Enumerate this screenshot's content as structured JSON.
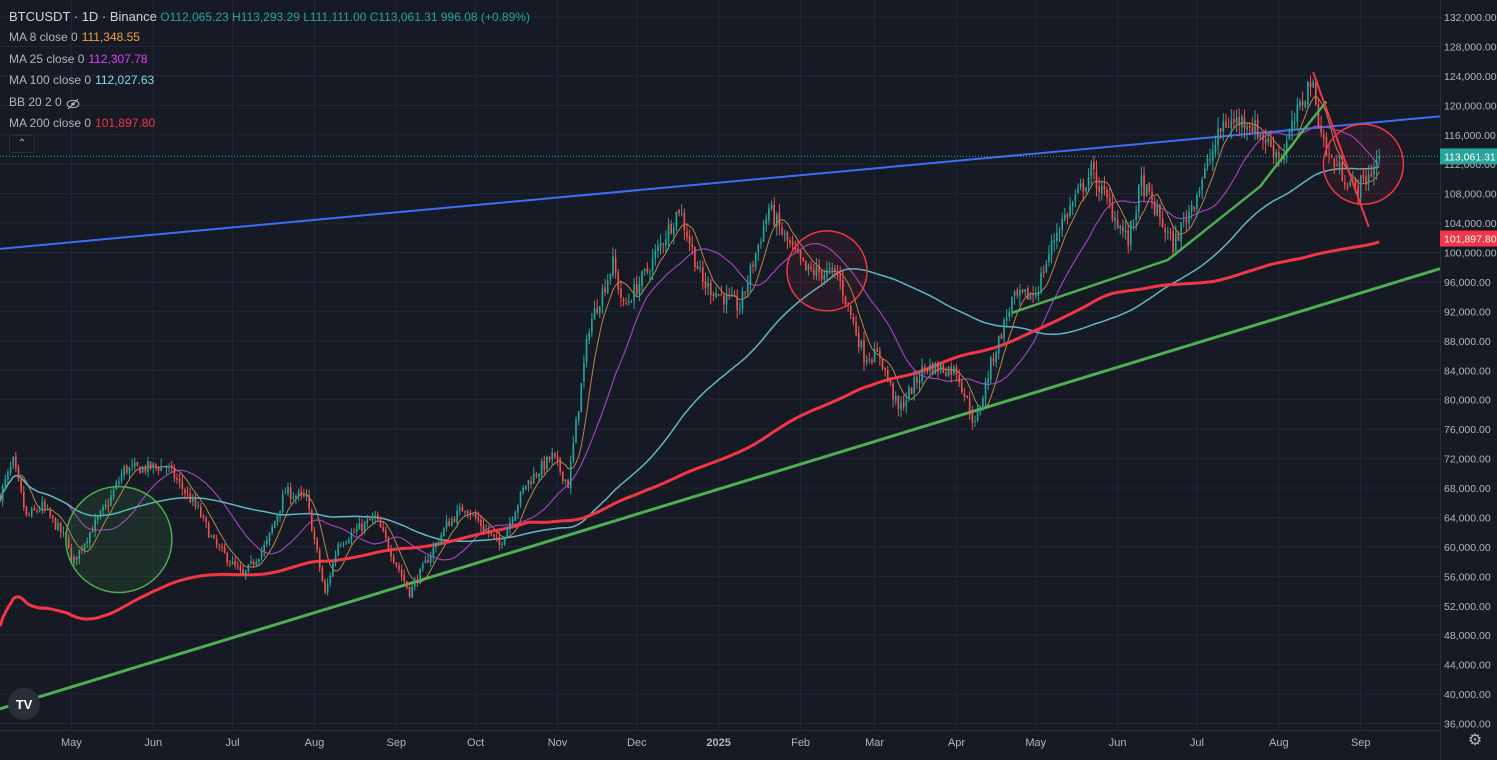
{
  "header": {
    "symbol": "BTCUSDT · 1D · Binance",
    "ohlc": "O112,065.23 H113,293.29 L111,111.00 C113,061.31 996.08 (+0.89%)",
    "indicators": [
      {
        "label": "MA 8 close 0",
        "value": "111,348.55",
        "color": "#f5a142"
      },
      {
        "label": "MA 25 close 0",
        "value": "112,307.78",
        "color": "#e040fb"
      },
      {
        "label": "MA 100 close 0",
        "value": "112,027.63",
        "color": "#80deea"
      },
      {
        "label": "BB 20 2 0",
        "value": "",
        "color": "#787b86"
      },
      {
        "label": "MA 200 close 0",
        "value": "101,897.80",
        "color": "#f23645"
      }
    ]
  },
  "price_tags": [
    {
      "text": "113,061.31",
      "value": 113061.31,
      "bg": "#26a69a"
    },
    {
      "text": "101,897.80",
      "value": 101897.8,
      "bg": "#f23645"
    }
  ],
  "chart_data": {
    "type": "candlestick",
    "symbol": "BTCUSDT",
    "interval": "1D",
    "exchange": "Binance",
    "y_ticks": [
      36000,
      40000,
      44000,
      48000,
      52000,
      56000,
      60000,
      64000,
      68000,
      72000,
      76000,
      80000,
      84000,
      88000,
      92000,
      96000,
      100000,
      104000,
      108000,
      112000,
      116000,
      120000,
      124000,
      128000,
      132000
    ],
    "y_tick_labels": [
      "36,000.00",
      "40,000.00",
      "44,000.00",
      "48,000.00",
      "52,000.00",
      "56,000.00",
      "60,000.00",
      "64,000.00",
      "68,000.00",
      "72,000.00",
      "76,000.00",
      "80,000.00",
      "84,000.00",
      "88,000.00",
      "92,000.00",
      "96,000.00",
      "100,000.00",
      "104,000.00",
      "108,000.00",
      "112,000.00",
      "116,000.00",
      "120,000.00",
      "124,000.00",
      "128,000.00",
      "132,000.00"
    ],
    "x_labels": [
      {
        "label": "May",
        "date": "2024-05-01"
      },
      {
        "label": "Jun",
        "date": "2024-06-01"
      },
      {
        "label": "Jul",
        "date": "2024-07-01"
      },
      {
        "label": "Aug",
        "date": "2024-08-01"
      },
      {
        "label": "Sep",
        "date": "2024-09-01"
      },
      {
        "label": "Oct",
        "date": "2024-10-01"
      },
      {
        "label": "Nov",
        "date": "2024-11-01"
      },
      {
        "label": "Dec",
        "date": "2024-12-01"
      },
      {
        "label": "2025",
        "date": "2025-01-01"
      },
      {
        "label": "Feb",
        "date": "2025-02-01"
      },
      {
        "label": "Mar",
        "date": "2025-03-01"
      },
      {
        "label": "Apr",
        "date": "2025-04-01"
      },
      {
        "label": "May",
        "date": "2025-05-01"
      },
      {
        "label": "Jun",
        "date": "2025-06-01"
      },
      {
        "label": "Jul",
        "date": "2025-07-01"
      },
      {
        "label": "Aug",
        "date": "2025-08-01"
      },
      {
        "label": "Sep",
        "date": "2025-09-01"
      }
    ],
    "date_range": [
      "2024-04-04",
      "2025-10-01"
    ],
    "price_path": [
      [
        "2024-04-04",
        67000
      ],
      [
        "2024-04-09",
        71500
      ],
      [
        "2024-04-14",
        64000
      ],
      [
        "2024-04-20",
        65500
      ],
      [
        "2024-04-30",
        60500
      ],
      [
        "2024-05-01",
        57500
      ],
      [
        "2024-05-08",
        62000
      ],
      [
        "2024-05-15",
        66000
      ],
      [
        "2024-05-21",
        70500
      ],
      [
        "2024-06-06",
        71000
      ],
      [
        "2024-06-18",
        65000
      ],
      [
        "2024-06-24",
        60500
      ],
      [
        "2024-07-05",
        56000
      ],
      [
        "2024-07-14",
        60500
      ],
      [
        "2024-07-21",
        67500
      ],
      [
        "2024-07-29",
        66500
      ],
      [
        "2024-08-05",
        53500
      ],
      [
        "2024-08-10",
        60500
      ],
      [
        "2024-08-24",
        64000
      ],
      [
        "2024-09-06",
        53800
      ],
      [
        "2024-09-20",
        63000
      ],
      [
        "2024-09-27",
        65500
      ],
      [
        "2024-10-10",
        60200
      ],
      [
        "2024-10-20",
        68500
      ],
      [
        "2024-10-30",
        72300
      ],
      [
        "2024-11-05",
        68500
      ],
      [
        "2024-11-13",
        90000
      ],
      [
        "2024-11-22",
        98500
      ],
      [
        "2024-11-26",
        92500
      ],
      [
        "2024-12-05",
        97500
      ],
      [
        "2024-12-17",
        106000
      ],
      [
        "2024-12-26",
        95800
      ],
      [
        "2025-01-09",
        92500
      ],
      [
        "2025-01-20",
        106000
      ],
      [
        "2025-01-26",
        102000
      ],
      [
        "2025-02-03",
        97500
      ],
      [
        "2025-02-15",
        97000
      ],
      [
        "2025-02-25",
        86000
      ],
      [
        "2025-03-03",
        86000
      ],
      [
        "2025-03-10",
        78500
      ],
      [
        "2025-03-20",
        84500
      ],
      [
        "2025-04-01",
        84000
      ],
      [
        "2025-04-08",
        76500
      ],
      [
        "2025-04-14",
        84800
      ],
      [
        "2025-04-22",
        93500
      ],
      [
        "2025-05-01",
        94500
      ],
      [
        "2025-05-09",
        103000
      ],
      [
        "2025-05-22",
        111000
      ],
      [
        "2025-06-05",
        101500
      ],
      [
        "2025-06-10",
        109500
      ],
      [
        "2025-06-22",
        101000
      ],
      [
        "2025-06-30",
        107200
      ],
      [
        "2025-07-11",
        117500
      ],
      [
        "2025-07-20",
        118000
      ],
      [
        "2025-08-02",
        113000
      ],
      [
        "2025-08-13",
        123500
      ],
      [
        "2025-08-19",
        113500
      ],
      [
        "2025-08-30",
        108500
      ],
      [
        "2025-09-04",
        110500
      ],
      [
        "2025-09-08",
        113061
      ]
    ],
    "moving_averages": [
      {
        "name": "MA 8 close 0",
        "color": "#f5a142",
        "last": 111348.55
      },
      {
        "name": "MA 25 close 0",
        "color": "#e040fb",
        "last": 112307.78
      },
      {
        "name": "MA 100 close 0",
        "color": "#80deea",
        "last": 112027.63
      },
      {
        "name": "MA 200 close 0",
        "color": "#f23645",
        "last": 101897.8
      }
    ],
    "colors": {
      "up": "#26a69a",
      "down": "#ef5350",
      "blue_line": "#3d6ef5",
      "green_line": "#4caf50",
      "red_ma": "#f23645",
      "cyan_ma": "#5fb8c2",
      "purple_ma": "#9c45b5",
      "grid": "#232734",
      "axis_text": "#b2b5be",
      "background": "#161a25"
    },
    "drawings": {
      "blue_trendline": [
        [
          "2024-04-04",
          100500
        ],
        [
          "2025-10-01",
          118500
        ]
      ],
      "green_trendline": [
        [
          "2024-04-04",
          38000
        ],
        [
          "2025-10-01",
          97800
        ]
      ],
      "green_circle_center": [
        "2024-05-19",
        61000
      ],
      "red_circle_1_center": [
        "2025-02-11",
        97500
      ],
      "red_circle_2_center": [
        "2025-09-02",
        112000
      ],
      "red_downtrend": [
        [
          "2025-08-14",
          124500
        ],
        [
          "2025-09-04",
          103500
        ]
      ],
      "green_curve": [
        [
          "2025-04-22",
          91800
        ],
        [
          "2025-06-20",
          99000
        ],
        [
          "2025-07-25",
          109000
        ],
        [
          "2025-08-10",
          116500
        ],
        [
          "2025-08-19",
          120500
        ]
      ]
    }
  }
}
